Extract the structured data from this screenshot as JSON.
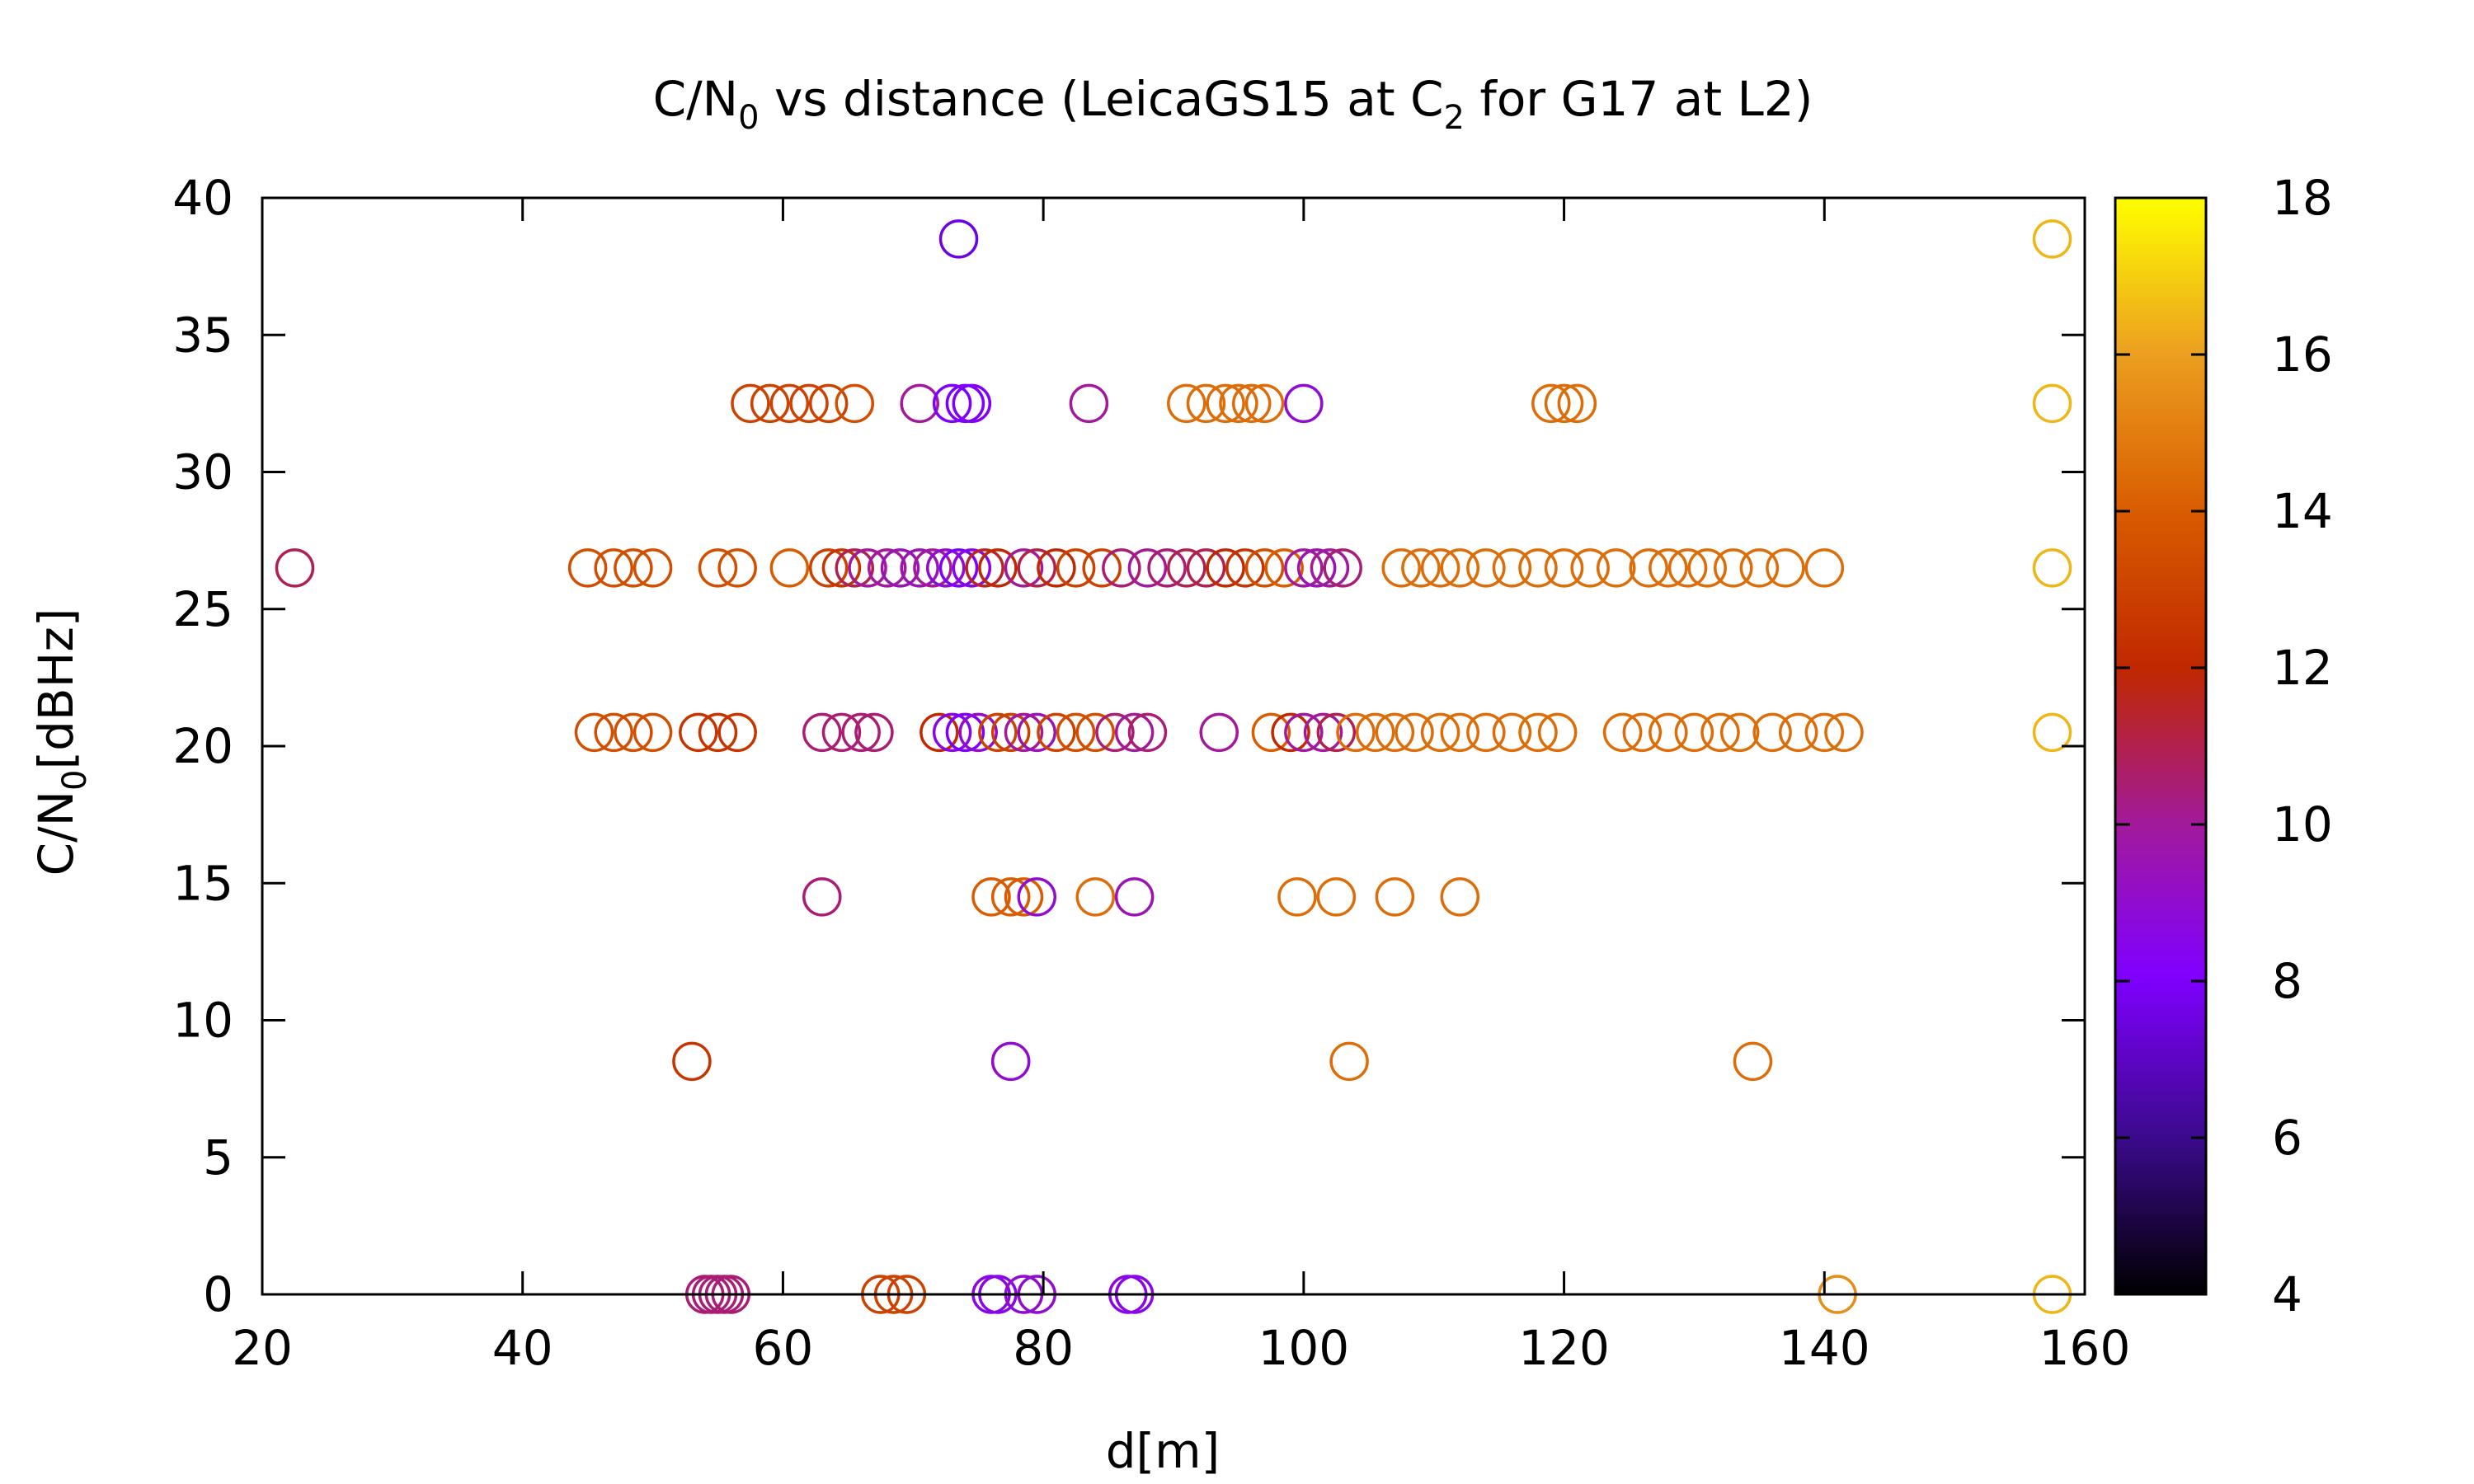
{
  "chart_data": {
    "type": "scatter",
    "title": {
      "pre": "C/N",
      "sub1": "0",
      "mid": " vs distance (LeicaGS15 at C",
      "sub2": "2",
      "post": " for G17 at L2)"
    },
    "xlabel": "d[m]",
    "ylabel": {
      "pre": "C/N",
      "sub": "0",
      "post": "[dBHz]"
    },
    "xlim": [
      20,
      160
    ],
    "ylim": [
      0,
      40
    ],
    "xticks": [
      20,
      40,
      60,
      80,
      100,
      120,
      140,
      160
    ],
    "yticks": [
      0,
      5,
      10,
      15,
      20,
      25,
      30,
      35,
      40
    ],
    "colorbar": {
      "range": [
        4,
        18
      ],
      "ticks": [
        4,
        6,
        8,
        10,
        12,
        14,
        16,
        18
      ],
      "palette": "black-blue-purple-red-orange-yellow"
    },
    "marker": "open-circle",
    "grid": false,
    "series": [
      {
        "y": 38.5,
        "points": [
          [
            73.5,
            7.5
          ],
          [
            157.5,
            16.5
          ]
        ]
      },
      {
        "y": 32.5,
        "points": [
          [
            57.5,
            13
          ],
          [
            59,
            13
          ],
          [
            60.5,
            13
          ],
          [
            62,
            13
          ],
          [
            63.5,
            13
          ],
          [
            65.5,
            13.5
          ],
          [
            70.5,
            10
          ],
          [
            73,
            8
          ],
          [
            74,
            8
          ],
          [
            74.5,
            8
          ],
          [
            83.5,
            10
          ],
          [
            91,
            14.5
          ],
          [
            92.5,
            14.5
          ],
          [
            94,
            14.5
          ],
          [
            95,
            14.5
          ],
          [
            96,
            14.5
          ],
          [
            97,
            14.5
          ],
          [
            100,
            9
          ],
          [
            119,
            14.5
          ],
          [
            120,
            14.5
          ],
          [
            121,
            14.5
          ],
          [
            157.5,
            16.5
          ]
        ]
      },
      {
        "y": 26.5,
        "points": [
          [
            22.5,
            11
          ],
          [
            45,
            13.5
          ],
          [
            47,
            13.5
          ],
          [
            48.5,
            13.5
          ],
          [
            50,
            13.5
          ],
          [
            55,
            13.5
          ],
          [
            56.5,
            13.5
          ],
          [
            60.5,
            14
          ],
          [
            63.5,
            13
          ],
          [
            64.5,
            12.5
          ],
          [
            65.5,
            11
          ],
          [
            66.5,
            10
          ],
          [
            68,
            10
          ],
          [
            69,
            9.5
          ],
          [
            70.5,
            9.5
          ],
          [
            71.5,
            10
          ],
          [
            72.5,
            9
          ],
          [
            73.5,
            8
          ],
          [
            74.5,
            8.5
          ],
          [
            75.5,
            11.5
          ],
          [
            76.5,
            12
          ],
          [
            78.5,
            10
          ],
          [
            79.5,
            11
          ],
          [
            81,
            12
          ],
          [
            82.5,
            13
          ],
          [
            84.5,
            13
          ],
          [
            86,
            10.5
          ],
          [
            88,
            10
          ],
          [
            89.5,
            10.5
          ],
          [
            91,
            11
          ],
          [
            92.5,
            11
          ],
          [
            94,
            12
          ],
          [
            95.5,
            12.5
          ],
          [
            97,
            13.5
          ],
          [
            98.5,
            14
          ],
          [
            100,
            10
          ],
          [
            101,
            9.5
          ],
          [
            102,
            10
          ],
          [
            103,
            10.5
          ],
          [
            107.5,
            14.5
          ],
          [
            109,
            14.5
          ],
          [
            110.5,
            14.5
          ],
          [
            112,
            14.5
          ],
          [
            114,
            14.5
          ],
          [
            116,
            14.5
          ],
          [
            118,
            14.5
          ],
          [
            120,
            14.5
          ],
          [
            122,
            14.5
          ],
          [
            124,
            14.5
          ],
          [
            126.5,
            14.5
          ],
          [
            128,
            14.5
          ],
          [
            129.5,
            14.5
          ],
          [
            131,
            14.5
          ],
          [
            133,
            14.5
          ],
          [
            135,
            14.5
          ],
          [
            137,
            14.5
          ],
          [
            140,
            14.5
          ],
          [
            157.5,
            16.5
          ]
        ]
      },
      {
        "y": 20.5,
        "points": [
          [
            45.5,
            13.5
          ],
          [
            47,
            13.5
          ],
          [
            48.5,
            13.5
          ],
          [
            50,
            13.5
          ],
          [
            53.5,
            12.5
          ],
          [
            55,
            12.5
          ],
          [
            56.5,
            12.5
          ],
          [
            63,
            10.5
          ],
          [
            64.5,
            10.5
          ],
          [
            66,
            10.5
          ],
          [
            67,
            10.5
          ],
          [
            72,
            12
          ],
          [
            73,
            8.5
          ],
          [
            74,
            8
          ],
          [
            75,
            9
          ],
          [
            76.5,
            13
          ],
          [
            77.5,
            13
          ],
          [
            78.5,
            10
          ],
          [
            79.5,
            9.5
          ],
          [
            81,
            13
          ],
          [
            82.5,
            13.5
          ],
          [
            84,
            13.5
          ],
          [
            85.5,
            10.5
          ],
          [
            87,
            10
          ],
          [
            88,
            10.5
          ],
          [
            93.5,
            10
          ],
          [
            97.5,
            14
          ],
          [
            99,
            12
          ],
          [
            100,
            10
          ],
          [
            101.5,
            10
          ],
          [
            102.5,
            11
          ],
          [
            104,
            14.5
          ],
          [
            105.5,
            14.5
          ],
          [
            107,
            14.5
          ],
          [
            108.5,
            14.5
          ],
          [
            110.5,
            14.5
          ],
          [
            112,
            14.5
          ],
          [
            114,
            14.5
          ],
          [
            116,
            14.5
          ],
          [
            118,
            14.5
          ],
          [
            119.5,
            14.5
          ],
          [
            124.5,
            14.5
          ],
          [
            126,
            14.5
          ],
          [
            128,
            14.5
          ],
          [
            130,
            14.5
          ],
          [
            132,
            14.5
          ],
          [
            133.5,
            14.5
          ],
          [
            136,
            14.5
          ],
          [
            138,
            14.5
          ],
          [
            140,
            14.5
          ],
          [
            141.5,
            14.5
          ],
          [
            157.5,
            16.5
          ]
        ]
      },
      {
        "y": 14.5,
        "points": [
          [
            63,
            10.5
          ],
          [
            76,
            14
          ],
          [
            77.5,
            14
          ],
          [
            78.5,
            14
          ],
          [
            79.5,
            9
          ],
          [
            84,
            14.5
          ],
          [
            87,
            9.5
          ],
          [
            99.5,
            14.5
          ],
          [
            102.5,
            14.5
          ],
          [
            107,
            14.5
          ],
          [
            112,
            14.5
          ]
        ]
      },
      {
        "y": 8.5,
        "points": [
          [
            53,
            12.5
          ],
          [
            77.5,
            9
          ],
          [
            103.5,
            14.5
          ],
          [
            134.5,
            14.5
          ]
        ]
      },
      {
        "y": 0,
        "points": [
          [
            54,
            10.5
          ],
          [
            54.5,
            10.5
          ],
          [
            55,
            10.5
          ],
          [
            55.5,
            10.5
          ],
          [
            56,
            10.5
          ],
          [
            67.5,
            13
          ],
          [
            68.5,
            13
          ],
          [
            69.5,
            13
          ],
          [
            76,
            8.5
          ],
          [
            76.5,
            8.5
          ],
          [
            78.5,
            9
          ],
          [
            79.5,
            9
          ],
          [
            86.5,
            8.5
          ],
          [
            87,
            8.5
          ],
          [
            141,
            15.5
          ],
          [
            157.5,
            16.5
          ]
        ]
      }
    ]
  }
}
